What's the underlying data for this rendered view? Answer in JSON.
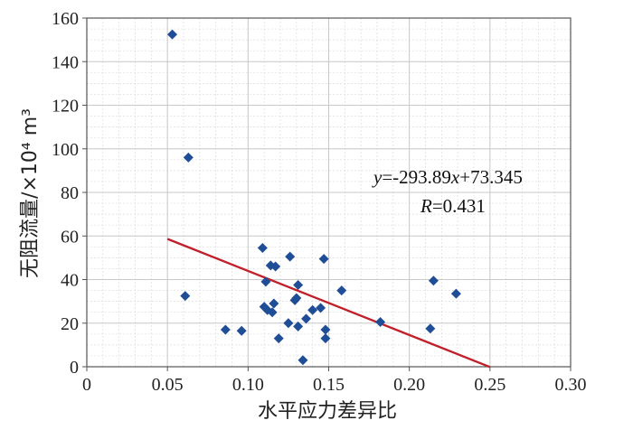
{
  "chart_data": {
    "type": "scatter",
    "title": "",
    "xlabel": "水平应力差异比",
    "ylabel": "无阻流量/×10⁴ m³",
    "xlim": [
      0,
      0.3
    ],
    "ylim": [
      0,
      160
    ],
    "x_ticks": [
      "0",
      "0.05",
      "0.10",
      "0.15",
      "0.20",
      "0.25",
      "0.30"
    ],
    "x_tick_values": [
      0,
      0.05,
      0.1,
      0.15,
      0.2,
      0.25,
      0.3
    ],
    "y_ticks": [
      "0",
      "20",
      "40",
      "60",
      "80",
      "100",
      "120",
      "140",
      "160"
    ],
    "y_tick_values": [
      0,
      20,
      40,
      60,
      80,
      100,
      120,
      140,
      160
    ],
    "grid": true,
    "minor_grid": true,
    "legend": "none",
    "point_color": "#1f4e96",
    "line_color": "#c0202a",
    "series": [
      {
        "values": [
          {
            "x": 0.053,
            "y": 152.5
          },
          {
            "x": 0.061,
            "y": 32.5
          },
          {
            "x": 0.063,
            "y": 96.0
          },
          {
            "x": 0.086,
            "y": 17.0
          },
          {
            "x": 0.096,
            "y": 16.5
          },
          {
            "x": 0.109,
            "y": 54.5
          },
          {
            "x": 0.11,
            "y": 27.5
          },
          {
            "x": 0.111,
            "y": 39.0
          },
          {
            "x": 0.112,
            "y": 26.0
          },
          {
            "x": 0.114,
            "y": 46.5
          },
          {
            "x": 0.115,
            "y": 25.0
          },
          {
            "x": 0.116,
            "y": 29.0
          },
          {
            "x": 0.117,
            "y": 46.0
          },
          {
            "x": 0.119,
            "y": 13.0
          },
          {
            "x": 0.125,
            "y": 20.0
          },
          {
            "x": 0.126,
            "y": 50.5
          },
          {
            "x": 0.129,
            "y": 30.5
          },
          {
            "x": 0.13,
            "y": 31.5
          },
          {
            "x": 0.131,
            "y": 37.5
          },
          {
            "x": 0.131,
            "y": 18.5
          },
          {
            "x": 0.134,
            "y": 3.0
          },
          {
            "x": 0.136,
            "y": 22.0
          },
          {
            "x": 0.14,
            "y": 26.0
          },
          {
            "x": 0.145,
            "y": 27.0
          },
          {
            "x": 0.147,
            "y": 49.5
          },
          {
            "x": 0.148,
            "y": 17.0
          },
          {
            "x": 0.148,
            "y": 13.0
          },
          {
            "x": 0.158,
            "y": 35.0
          },
          {
            "x": 0.182,
            "y": 20.5
          },
          {
            "x": 0.213,
            "y": 17.5
          },
          {
            "x": 0.215,
            "y": 39.5
          },
          {
            "x": 0.229,
            "y": 33.5
          }
        ]
      }
    ],
    "trendline": {
      "slope": -293.89,
      "intercept": 73.345,
      "x_range": [
        0.05,
        0.25
      ],
      "equation_y": "y",
      "equation_rest": "=-293.89",
      "equation_x": "x",
      "equation_tail": "+73.345",
      "r_label": "R",
      "r_value_text": "=0.431"
    }
  }
}
